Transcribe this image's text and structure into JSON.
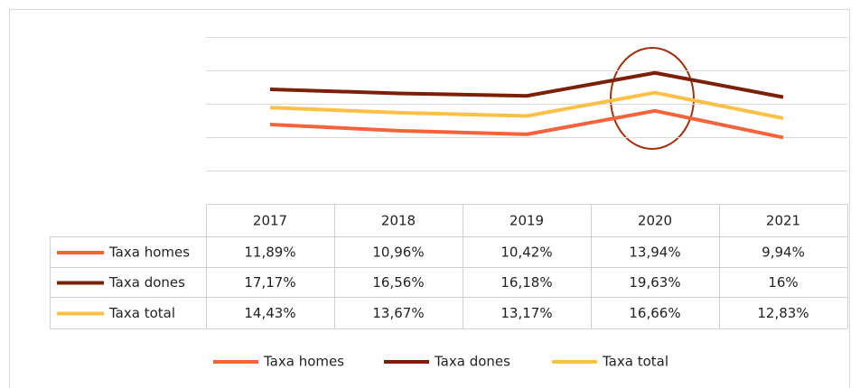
{
  "chart_data": {
    "type": "line",
    "categories": [
      "2017",
      "2018",
      "2019",
      "2020",
      "2021"
    ],
    "ylim": [
      0,
      25
    ],
    "yticks": [
      5,
      10,
      15,
      20,
      25
    ],
    "grid": true,
    "legend": "bottom",
    "series": [
      {
        "name": "Taxa homes",
        "color": "#f4633a",
        "values": [
          11.89,
          10.96,
          10.42,
          13.94,
          9.94
        ],
        "value_labels": [
          "11,89%",
          "10,96%",
          "10,42%",
          "13,94%",
          "9,94%"
        ]
      },
      {
        "name": "Taxa dones",
        "color": "#7b2006",
        "values": [
          17.17,
          16.56,
          16.18,
          19.63,
          16
        ],
        "value_labels": [
          "17,17%",
          "16,56%",
          "16,18%",
          "19,63%",
          "16%"
        ]
      },
      {
        "name": "Taxa total",
        "color": "#fcbf47",
        "values": [
          14.43,
          13.67,
          13.17,
          16.66,
          12.83
        ],
        "value_labels": [
          "14,43%",
          "13,67%",
          "13,17%",
          "16,66%",
          "12,83%"
        ]
      }
    ]
  }
}
